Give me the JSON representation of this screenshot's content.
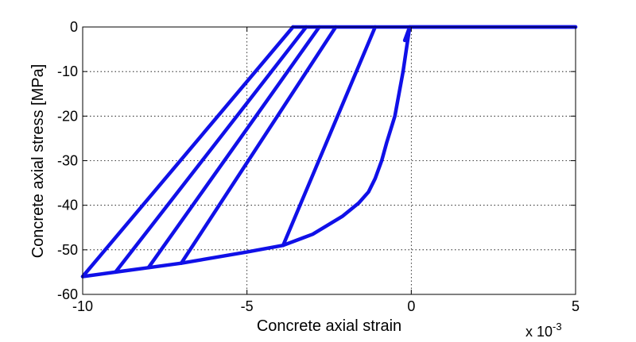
{
  "chart_data": {
    "type": "line",
    "title": "",
    "xlabel": "Concrete axial strain",
    "ylabel": "Concrete axial stress [MPa]",
    "x_multiplier": "x 10",
    "x_multiplier_exp": "-3",
    "xlim": [
      -10,
      5
    ],
    "ylim": [
      -60,
      0
    ],
    "xticks": [
      -10,
      -5,
      0,
      5
    ],
    "yticks": [
      0,
      -10,
      -20,
      -30,
      -40,
      -50,
      -60
    ],
    "grid": true,
    "line_color": "#1010e8",
    "series": [
      {
        "x": [
          5,
          -0.05,
          -0.25,
          -0.5,
          -0.75,
          -0.9,
          -1.1,
          -1.3,
          -1.6,
          -2.1,
          -3.0,
          -3.9,
          -5.0,
          -7.0,
          -8.0,
          -9.0,
          -10.0
        ],
        "y": [
          0,
          0,
          -10,
          -20,
          -26,
          -30,
          -34,
          -37,
          -39.5,
          -42.5,
          -46.5,
          -49,
          -50.5,
          -53,
          -54,
          -55,
          -56
        ]
      },
      {
        "x": [
          -3.9,
          -1.1
        ],
        "y": [
          -49,
          0
        ]
      },
      {
        "x": [
          -7.0,
          -2.3
        ],
        "y": [
          -53,
          0
        ]
      },
      {
        "x": [
          -8.0,
          -2.8
        ],
        "y": [
          -54,
          0
        ]
      },
      {
        "x": [
          -9.0,
          -3.2
        ],
        "y": [
          -55,
          0
        ]
      },
      {
        "x": [
          -10.0,
          -3.6
        ],
        "y": [
          -56,
          0
        ]
      },
      {
        "x": [
          -3.6,
          5
        ],
        "y": [
          0,
          0
        ]
      },
      {
        "x": [
          -0.2,
          -0.05
        ],
        "y": [
          -3,
          0
        ]
      }
    ]
  }
}
